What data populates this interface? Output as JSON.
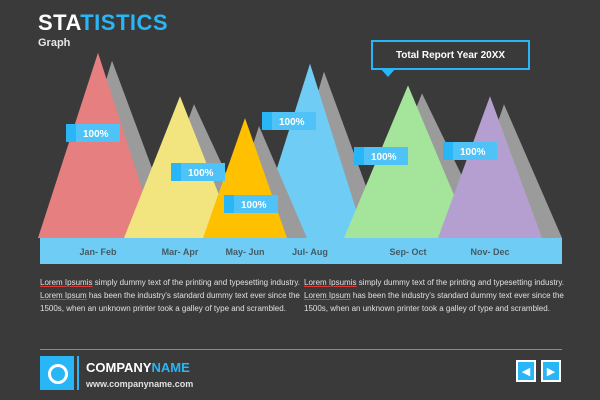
{
  "header": {
    "title_part1": "STA",
    "title_part2": "TISTICS",
    "subtitle": "Graph",
    "report_label": "Total Report Year 20XX"
  },
  "chart_data": {
    "type": "area",
    "categories": [
      "Jan- Feb",
      "Mar- Apr",
      "May- Jun",
      "Jul- Aug",
      "Sep- Oct",
      "Nov- Dec"
    ],
    "values": [
      100,
      100,
      100,
      100,
      100,
      100
    ],
    "data_labels": [
      "100%",
      "100%",
      "100%",
      "100%",
      "100%",
      "100%"
    ],
    "heights": [
      0.85,
      0.65,
      0.55,
      0.8,
      0.7,
      0.65
    ],
    "colors": [
      "#e57f80",
      "#f2e57f",
      "#ffc000",
      "#6fcdf5",
      "#a4e59b",
      "#b49fd0"
    ],
    "shadow_color": "#9b9b9b",
    "band_color": "#6fcdf5",
    "label_color": "#29b6f6"
  },
  "paragraphs": [
    {
      "link1": "Lorem Ipsumis",
      "text1": " simply dummy text of the printing and typesetting industry. ",
      "link2": "Lorem Ipsum",
      "text2": " has been the industry's standard dummy text ever since the 1500s, when an unknown printer took a galley of type and scrambled."
    },
    {
      "link1": "Lorem Ipsumis",
      "text1": " simply dummy text of the printing and typesetting industry. ",
      "link2": "Lorem Ipsum",
      "text2": " has been the industry's standard dummy text ever since the 1500s, when an unknown printer took a galley of type and scrambled."
    }
  ],
  "footer": {
    "company_part1": "COMPANY",
    "company_part2": "NAME",
    "website": "www.companyname.com",
    "prev_icon": "◀",
    "next_icon": "▶"
  }
}
